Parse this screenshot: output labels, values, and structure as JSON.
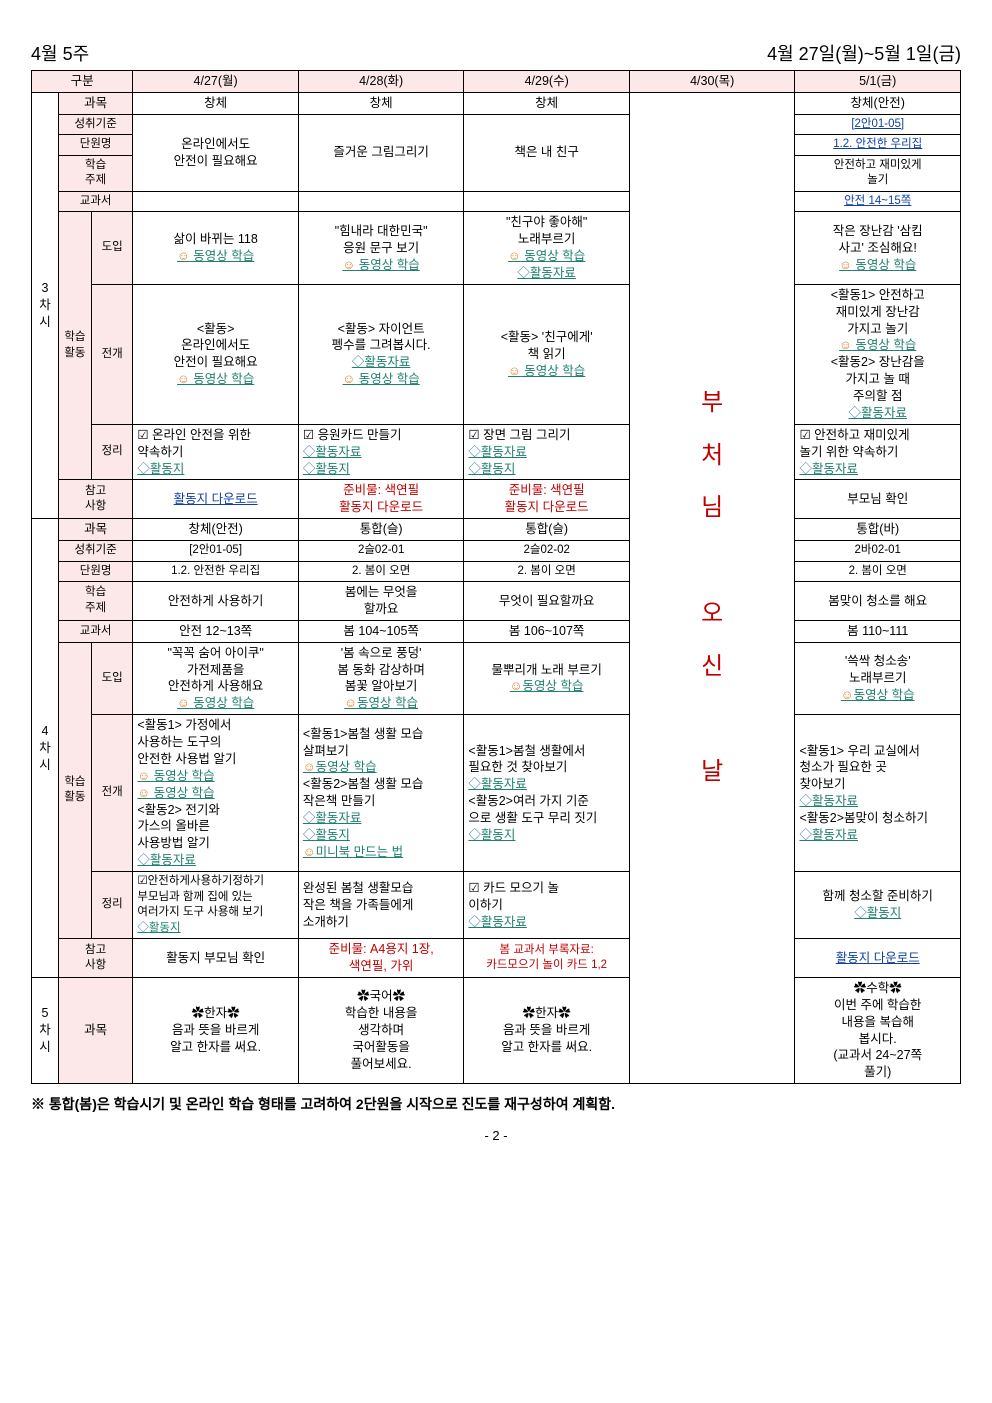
{
  "header": {
    "week": "4월 5주",
    "range": "4월 27일(월)~5월 1일(금)"
  },
  "columns": {
    "division": "구분",
    "d1": "4/27(월)",
    "d2": "4/28(화)",
    "d3": "4/29(수)",
    "d4": "4/30(목)",
    "d5": "5/1(금)"
  },
  "holiday": "부\n처\n님\n\n오\n신\n\n날",
  "period3": {
    "label": "3\n차시",
    "subject_label": "과목",
    "subject": {
      "d1": "창체",
      "d2": "창체",
      "d3": "창체",
      "d5": "창체(안전)"
    },
    "std_label": "성취기준",
    "std": {
      "d5": "[2안01-05]"
    },
    "unit_label": "단원명",
    "unit": {
      "d1": "온라인에서도\n안전이 필요해요",
      "d2": "즐거운 그림그리기",
      "d3": "책은 내 친구",
      "d5": "1.2. 안전한 우리집"
    },
    "topic_label": "학습\n주제",
    "topic": {
      "d5": "안전하고 재미있게\n놀기"
    },
    "book_label": "교과서",
    "book": {
      "d5": "안전 14~15쪽"
    },
    "act_label": "학습\n활동",
    "intro_label": "도입",
    "intro": {
      "d1": "삶이 바뀌는 118\n☺ 동영상 학습",
      "d2": "\"힘내라 대한민국\"\n응원 문구 보기\n☺ 동영상 학습",
      "d3": "\"친구야 좋아해\"\n노래부르기\n☺ 동영상 학습\n◇활동자료",
      "d5": "작은 장난감 '삼킴\n사고' 조심해요!\n☺ 동영상 학습"
    },
    "dev_label": "전개",
    "dev": {
      "d1": "<활동>\n온라인에서도\n안전이 필요해요\n☺ 동영상 학습",
      "d2": "<활동> 자이언트\n펭수를 그려봅시다.\n◇활동자료\n☺ 동영상 학습",
      "d3": "<활동> '친구에게'\n책 읽기\n☺ 동영상 학습",
      "d5": "<활동1> 안전하고\n재미있게 장난감\n가지고 놀기\n☺ 동영상 학습\n<활동2> 장난감을\n가지고 놀 때\n주의할 점\n◇활동자료"
    },
    "close_label": "정리",
    "close": {
      "d1": "☑ 온라인 안전을 위한\n약속하기\n◇활동지",
      "d2": "☑ 응원카드 만들기\n◇활동자료\n◇활동지",
      "d3": "☑ 장면 그림 그리기\n◇활동자료\n◇활동지",
      "d5": "☑ 안전하고 재미있게\n놀기 위한 약속하기\n◇활동자료"
    },
    "ref_label": "참고\n사항",
    "ref": {
      "d1": "활동지 다운로드",
      "d2": "준비물: 색연필\n활동지 다운로드",
      "d3": "준비물: 색연필\n활동지 다운로드",
      "d5": "부모님 확인"
    }
  },
  "period4": {
    "label": "4\n차시",
    "subject_label": "과목",
    "subject": {
      "d1": "창체(안전)",
      "d2": "통합(슬)",
      "d3": "통합(슬)",
      "d5": "통합(바)"
    },
    "std_label": "성취기준",
    "std": {
      "d1": "[2안01-05]",
      "d2": "2슬02-01",
      "d3": "2슬02-02",
      "d5": "2바02-01"
    },
    "unit_label": "단원명",
    "unit": {
      "d1": "1.2. 안전한 우리집",
      "d2": "2. 봄이 오면",
      "d3": "2. 봄이 오면",
      "d5": "2. 봄이 오면"
    },
    "topic_label": "학습\n주제",
    "topic": {
      "d1": "안전하게 사용하기",
      "d2": "봄에는 무엇을\n할까요",
      "d3": "무엇이 필요할까요",
      "d5": "봄맞이 청소를 해요"
    },
    "book_label": "교과서",
    "book": {
      "d1": "안전 12~13쪽",
      "d2": "봄 104~105쪽",
      "d3": "봄 106~107쪽",
      "d5": "봄 110~111"
    },
    "act_label": "학습\n활동",
    "intro_label": "도입",
    "intro": {
      "d1": "\"꼭꼭 숨어 아이쿠\"\n가전제품을\n안전하게 사용해요\n☺ 동영상 학습",
      "d2": "'봄 속으로 풍덩'\n봄 동화 감상하며\n봄꽃 알아보기\n☺동영상 학습",
      "d3": "물뿌리개 노래 부르기\n☺동영상 학습",
      "d5": "'쓱싹 청소송'\n노래부르기\n☺동영상 학습"
    },
    "dev_label": "전개",
    "dev": {
      "d1": "<활동1> 가정에서\n사용하는 도구의\n안전한 사용법 알기\n☺ 동영상 학습\n☺ 동영상 학습\n<활동2> 전기와\n가스의 올바른\n사용방법 알기\n◇활동자료",
      "d2": "<활동1>봄철 생활 모습\n살펴보기\n☺동영상 학습\n<활동2>봄철 생활 모습\n작은책 만들기\n◇활동자료\n◇활동지\n☺미니북 만드는 법",
      "d3": "<활동1>봄철 생활에서\n필요한 것 찾아보기\n◇활동자료\n<활동2>여러 가지 기준\n으로 생활 도구 무리 짓기\n◇활동지",
      "d5": "<활동1> 우리 교실에서\n청소가 필요한 곳\n찾아보기\n◇활동자료\n<활동2>봄맞이 청소하기\n◇활동자료"
    },
    "close_label": "정리",
    "close": {
      "d1": "☑안전하게사용하기정하기\n부모님과 함께 집에 있는\n여러가지 도구 사용해 보기\n◇활동지",
      "d2": "완성된 봄철 생활모습\n작은 책을 가족들에게\n소개하기",
      "d3": "☑ 카드 모으기 놀\n이하기\n◇활동자료",
      "d5": "함께 청소할 준비하기\n◇활동지"
    },
    "ref_label": "참고\n사항",
    "ref": {
      "d1": "활동지 부모님 확인",
      "d2": "준비물: A4용지 1장,\n색연필, 가위",
      "d3": "봄 교과서 부록자료:\n카드모으기 놀이 카드 1,2",
      "d5": "활동지 다운로드"
    }
  },
  "period5": {
    "label": "5\n차시",
    "subject_label": "과목",
    "d1": "✿한자✿\n음과 뜻을 바르게\n알고 한자를 써요.",
    "d2": "✿국어✿\n학습한 내용을\n생각하며\n국어활동을\n풀어보세요.",
    "d3": "✿한자✿\n음과 뜻을 바르게\n알고 한자를 써요.",
    "d5": "✿수학✿\n이번 주에 학습한\n내용을 복습해\n봅시다.\n(교과서 24~27쪽\n풀기)"
  },
  "note": "※ 통합(봄)은 학습시기 및 온라인 학습 형태를 고려하여 2단원을 시작으로 진도를 재구성하여 계획함.",
  "page": "- 2 -",
  "colors": {
    "pink_bg": "#fce8e8",
    "teal": "#208070",
    "red": "#c00000",
    "blue": "#1040a0"
  }
}
